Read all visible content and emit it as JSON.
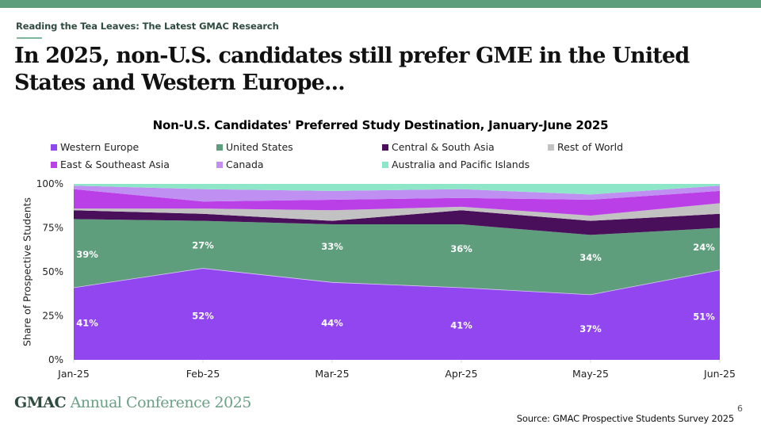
{
  "header": {
    "eyebrow": "Reading the Tea Leaves: The Latest GMAC Research",
    "headline": "In 2025, non-U.S. candidates still prefer GME in the United States and Western Europe..."
  },
  "footer": {
    "brand_strong": "GMAC",
    "brand_rest": "Annual Conference 2025",
    "page_number": "6",
    "source": "Source: GMAC Prospective Students Survey 2025"
  },
  "colors": {
    "top_bar": "#5f9e7d",
    "western_europe": "#9146ef",
    "united_states": "#5f9e7d",
    "central_south_asia": "#4a0f5a",
    "rest_of_world": "#c2c2c2",
    "east_southeast_asia": "#bb3fe6",
    "canada": "#bf8ff2",
    "australia_pacific": "#8ee6c8"
  },
  "chart_data": {
    "type": "area",
    "stacked": true,
    "normalized": true,
    "title": "Non-U.S. Candidates' Preferred Study Destination, January-June 2025",
    "xlabel": "",
    "ylabel": "Share of Prospective Students",
    "ylim": [
      0,
      100
    ],
    "y_ticks": [
      "0%",
      "25%",
      "50%",
      "75%",
      "100%"
    ],
    "y_tick_values": [
      0,
      25,
      50,
      75,
      100
    ],
    "categories": [
      "Jan-25",
      "Feb-25",
      "Mar-25",
      "Apr-25",
      "May-25",
      "Jun-25"
    ],
    "legend_position": "top",
    "grid": false,
    "series": [
      {
        "name": "Western Europe",
        "color": "#9146ef",
        "values": [
          41,
          52,
          44,
          41,
          37,
          51
        ],
        "labeled": true
      },
      {
        "name": "United States",
        "color": "#5f9e7d",
        "values": [
          39,
          27,
          33,
          36,
          34,
          24
        ],
        "labeled": true
      },
      {
        "name": "Central & South Asia",
        "color": "#4a0f5a",
        "values": [
          5,
          4,
          2,
          8,
          8,
          8
        ],
        "labeled": false
      },
      {
        "name": "Rest of World",
        "color": "#c2c2c2",
        "values": [
          1,
          3,
          6,
          2,
          3,
          6
        ],
        "labeled": false
      },
      {
        "name": "East & Southeast Asia",
        "color": "#bb3fe6",
        "values": [
          11,
          4,
          6,
          5,
          9,
          7
        ],
        "labeled": false
      },
      {
        "name": "Canada",
        "color": "#bf8ff2",
        "values": [
          2,
          7,
          5,
          5,
          3,
          3
        ],
        "labeled": false
      },
      {
        "name": "Australia and Pacific Islands",
        "color": "#8ee6c8",
        "values": [
          1,
          3,
          4,
          3,
          6,
          1
        ],
        "labeled": false
      }
    ],
    "data_labels": {
      "Western Europe": [
        "41%",
        "52%",
        "44%",
        "41%",
        "37%",
        "51%"
      ],
      "United States": [
        "39%",
        "27%",
        "33%",
        "36%",
        "34%",
        "24%"
      ]
    },
    "legend": [
      "Western Europe",
      "United States",
      "Central & South Asia",
      "Rest of World",
      "East & Southeast Asia",
      "Canada",
      "Australia and Pacific Islands"
    ]
  }
}
